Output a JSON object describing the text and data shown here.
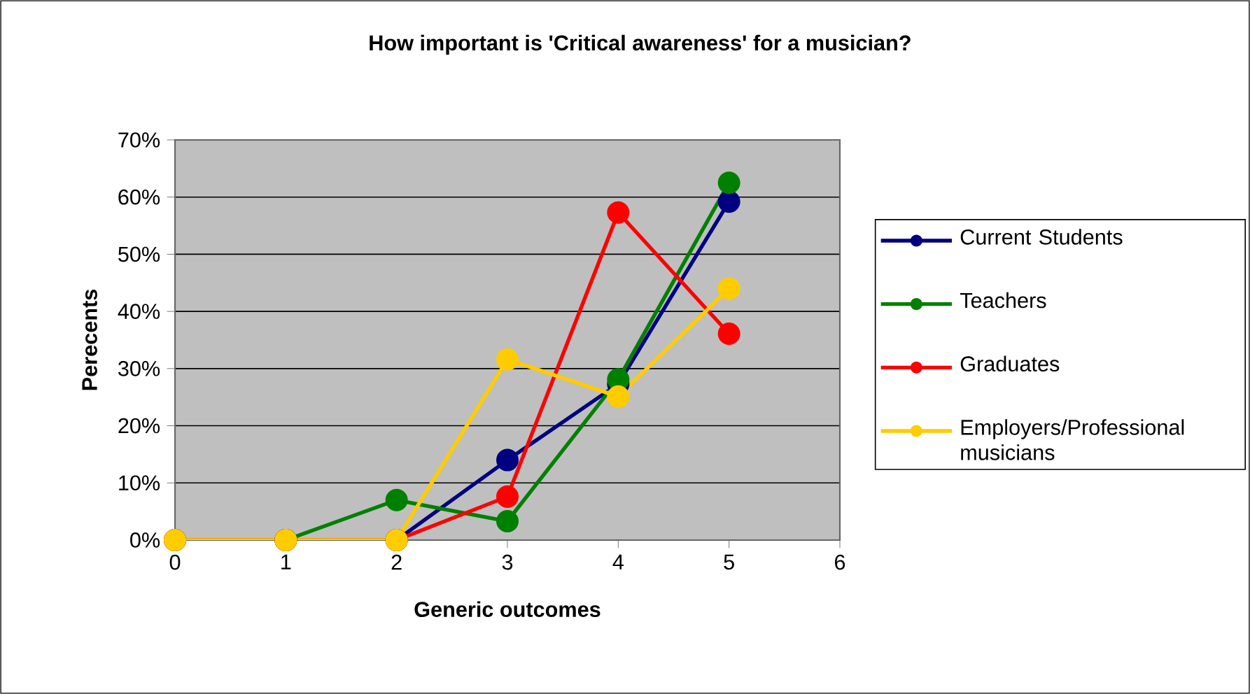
{
  "chart_data": {
    "type": "line",
    "title": "How important is 'Critical awareness' for a musician?",
    "xlabel": "Generic outcomes",
    "ylabel": "Perecents",
    "x": [
      0,
      1,
      2,
      3,
      4,
      5
    ],
    "series": [
      {
        "name": "Current Students",
        "color": "#000080",
        "values": [
          0,
          0,
          0,
          14.0,
          27.3,
          59.2
        ]
      },
      {
        "name": "Teachers",
        "color": "#008000",
        "values": [
          0,
          0,
          7.0,
          3.3,
          28.1,
          62.5
        ]
      },
      {
        "name": "Graduates",
        "color": "#ff0000",
        "values": [
          0,
          0,
          0,
          7.6,
          57.3,
          36.1
        ]
      },
      {
        "name": "Employers/Professional musicians",
        "color": "#ffcc00",
        "values": [
          0,
          0,
          0,
          31.6,
          25.1,
          44.0
        ]
      }
    ],
    "xlim": [
      0,
      6
    ],
    "xticks": [
      0,
      1,
      2,
      3,
      4,
      5,
      6
    ],
    "ylim": [
      0,
      70
    ],
    "yticks": [
      {
        "value": 0,
        "label": "0%"
      },
      {
        "value": 10,
        "label": "10%"
      },
      {
        "value": 20,
        "label": "20%"
      },
      {
        "value": 30,
        "label": "30%"
      },
      {
        "value": 40,
        "label": "40%"
      },
      {
        "value": 50,
        "label": "50%"
      },
      {
        "value": 60,
        "label": "60%"
      },
      {
        "value": 70,
        "label": "70%"
      }
    ],
    "grid": "y",
    "legend": "right",
    "marker": "circle",
    "line_style": "solid"
  }
}
